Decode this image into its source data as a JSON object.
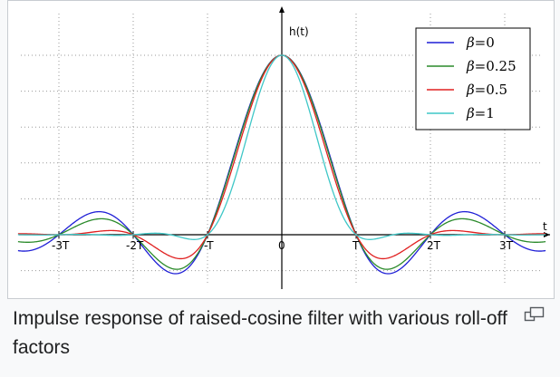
{
  "chart_data": {
    "type": "line",
    "title": "",
    "xlabel": "t",
    "ylabel": "h(t)",
    "xlim": [
      -3.6,
      3.6
    ],
    "ylim": [
      -0.5,
      1.15
    ],
    "x_ticks": [
      {
        "value": -3,
        "label": "-3T"
      },
      {
        "value": -2,
        "label": "-2T"
      },
      {
        "value": -1,
        "label": "-T"
      },
      {
        "value": 0,
        "label": "0"
      },
      {
        "value": 1,
        "label": "T"
      },
      {
        "value": 2,
        "label": "2T"
      },
      {
        "value": 3,
        "label": "3T"
      }
    ],
    "grid": true,
    "legend_position": "top-right",
    "series": [
      {
        "name": "β=0",
        "beta": 0,
        "color": "#1f1fd6"
      },
      {
        "name": "β=0.25",
        "beta": 0.25,
        "color": "#2a8a2a"
      },
      {
        "name": "β=0.5",
        "beta": 0.5,
        "color": "#e02020"
      },
      {
        "name": "β=1",
        "beta": 1,
        "color": "#3fc7c7"
      }
    ],
    "legend_labels": [
      {
        "symbol": "β",
        "value": "=0"
      },
      {
        "symbol": "β",
        "value": "=0.25"
      },
      {
        "symbol": "β",
        "value": "=0.5"
      },
      {
        "symbol": "β",
        "value": "=1"
      }
    ]
  },
  "caption": "Impulse response of raised-cosine filter with various roll-off factors",
  "icons": {
    "enlarge": "enlarge-icon"
  }
}
